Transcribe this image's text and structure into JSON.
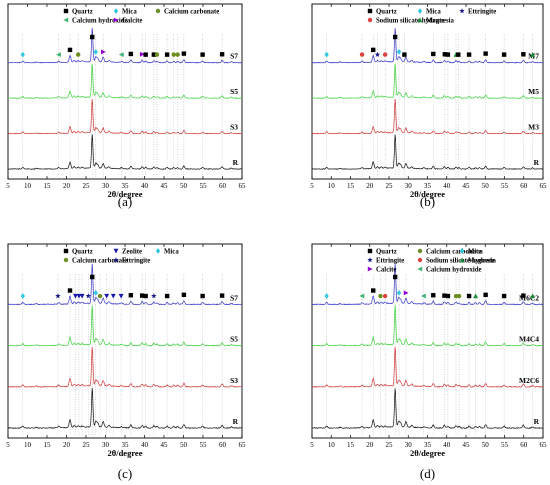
{
  "colors": {
    "R": "#111111",
    "S3": "#d23b3b",
    "S5": "#3fd23f",
    "S7": "#3838c8",
    "M3": "#d23b3b",
    "M5": "#3fd23f",
    "M7": "#3838c8",
    "M2C6": "#d23b3b",
    "M4C4": "#3fd23f",
    "M6C2": "#3838c8",
    "quartz": "#000000",
    "mica": "#33c8e0",
    "calcium_carbonate": "#6b8e23",
    "calcium_hydroxide": "#3cb371",
    "calcite": "#9400d3",
    "sodium_silicate_hydrate": "#e04040",
    "ettringite": "#1a1a8c",
    "magnesia": "#1a8c3a",
    "zeolite": "#1a1aa8"
  },
  "chart_data": [
    {
      "panel": "(a)",
      "type": "line",
      "xlabel": "2θ/degree",
      "xlim": [
        5,
        65
      ],
      "xticks": [
        5,
        10,
        15,
        20,
        25,
        30,
        35,
        40,
        45,
        50,
        55,
        60,
        65
      ],
      "series": [
        {
          "name": "R",
          "offset": 0
        },
        {
          "name": "S3",
          "offset": 1
        },
        {
          "name": "S5",
          "offset": 2
        },
        {
          "name": "S7",
          "offset": 3
        }
      ],
      "legend": [
        {
          "label": "Quartz",
          "marker": "square",
          "color": "quartz"
        },
        {
          "label": "Mica",
          "marker": "diamond",
          "color": "mica"
        },
        {
          "label": "Calcium carbonate",
          "marker": "circle",
          "color": "calcium_carbonate"
        },
        {
          "label": "Calcium hydroxide",
          "marker": "tri-left",
          "color": "calcium_hydroxide"
        },
        {
          "label": "Calcite",
          "marker": "tri-right",
          "color": "calcite"
        }
      ],
      "peak_markers": [
        {
          "x": 8.8,
          "marker": "diamond",
          "color": "mica"
        },
        {
          "x": 18.0,
          "marker": "tri-left",
          "color": "calcium_hydroxide"
        },
        {
          "x": 20.9,
          "marker": "square",
          "color": "quartz"
        },
        {
          "x": 23.0,
          "marker": "circle",
          "color": "calcium_carbonate"
        },
        {
          "x": 26.6,
          "marker": "square",
          "color": "quartz"
        },
        {
          "x": 27.5,
          "marker": "diamond",
          "color": "mica"
        },
        {
          "x": 29.4,
          "marker": "tri-right",
          "color": "calcite"
        },
        {
          "x": 34.1,
          "marker": "tri-left",
          "color": "calcium_hydroxide"
        },
        {
          "x": 36.5,
          "marker": "square",
          "color": "quartz"
        },
        {
          "x": 39.4,
          "marker": "tri-right",
          "color": "calcite"
        },
        {
          "x": 40.3,
          "marker": "square",
          "color": "quartz"
        },
        {
          "x": 42.4,
          "marker": "square",
          "color": "quartz"
        },
        {
          "x": 43.2,
          "marker": "circle",
          "color": "calcium_carbonate"
        },
        {
          "x": 45.8,
          "marker": "square",
          "color": "quartz"
        },
        {
          "x": 47.5,
          "marker": "circle",
          "color": "calcium_carbonate"
        },
        {
          "x": 48.5,
          "marker": "circle",
          "color": "calcium_carbonate"
        },
        {
          "x": 50.1,
          "marker": "square",
          "color": "quartz"
        },
        {
          "x": 54.9,
          "marker": "square",
          "color": "quartz"
        },
        {
          "x": 59.9,
          "marker": "square",
          "color": "quartz"
        }
      ]
    },
    {
      "panel": "(b)",
      "type": "line",
      "xlabel": "2θ/degree",
      "xlim": [
        5,
        65
      ],
      "xticks": [
        5,
        10,
        15,
        20,
        25,
        30,
        35,
        40,
        45,
        50,
        55,
        60,
        65
      ],
      "series": [
        {
          "name": "R",
          "offset": 0
        },
        {
          "name": "M3",
          "offset": 1
        },
        {
          "name": "M5",
          "offset": 2
        },
        {
          "name": "M7",
          "offset": 3
        }
      ],
      "legend": [
        {
          "label": "Quartz",
          "marker": "square",
          "color": "quartz"
        },
        {
          "label": "Mica",
          "marker": "diamond",
          "color": "mica"
        },
        {
          "label": "Ettringite",
          "marker": "star",
          "color": "ettringite"
        },
        {
          "label": "Sodium silicate hydrate",
          "marker": "circle",
          "color": "sodium_silicate_hydrate"
        },
        {
          "label": "Magnesia",
          "marker": "triangle",
          "color": "magnesia"
        }
      ],
      "peak_markers": [
        {
          "x": 8.8,
          "marker": "diamond",
          "color": "mica"
        },
        {
          "x": 18.0,
          "marker": "circle",
          "color": "sodium_silicate_hydrate"
        },
        {
          "x": 20.9,
          "marker": "square",
          "color": "quartz"
        },
        {
          "x": 22.0,
          "marker": "star",
          "color": "ettringite"
        },
        {
          "x": 24.0,
          "marker": "circle",
          "color": "sodium_silicate_hydrate"
        },
        {
          "x": 26.6,
          "marker": "square",
          "color": "quartz"
        },
        {
          "x": 27.6,
          "marker": "diamond",
          "color": "mica"
        },
        {
          "x": 29.0,
          "marker": "square",
          "color": "quartz"
        },
        {
          "x": 36.5,
          "marker": "square",
          "color": "quartz"
        },
        {
          "x": 39.5,
          "marker": "square",
          "color": "quartz"
        },
        {
          "x": 40.3,
          "marker": "square",
          "color": "quartz"
        },
        {
          "x": 42.4,
          "marker": "triangle",
          "color": "magnesia"
        },
        {
          "x": 43.0,
          "marker": "square",
          "color": "quartz"
        },
        {
          "x": 45.8,
          "marker": "square",
          "color": "quartz"
        },
        {
          "x": 50.1,
          "marker": "square",
          "color": "quartz"
        },
        {
          "x": 54.9,
          "marker": "square",
          "color": "quartz"
        },
        {
          "x": 59.9,
          "marker": "square",
          "color": "quartz"
        },
        {
          "x": 62.3,
          "marker": "triangle",
          "color": "magnesia"
        }
      ]
    },
    {
      "panel": "(c)",
      "type": "line",
      "xlabel": "2θ/degree",
      "xlim": [
        5,
        65
      ],
      "xticks": [
        5,
        10,
        15,
        20,
        25,
        30,
        35,
        40,
        45,
        50,
        55,
        60,
        65
      ],
      "series": [
        {
          "name": "R",
          "offset": 0
        },
        {
          "name": "S3",
          "offset": 1
        },
        {
          "name": "S5",
          "offset": 2
        },
        {
          "name": "S7",
          "offset": 3
        }
      ],
      "legend": [
        {
          "label": "Quartz",
          "marker": "square",
          "color": "quartz"
        },
        {
          "label": "Zeolite",
          "marker": "tri-down",
          "color": "zeolite"
        },
        {
          "label": "Mica",
          "marker": "diamond",
          "color": "mica"
        },
        {
          "label": "Calcium carbonate",
          "marker": "circle",
          "color": "calcium_carbonate"
        },
        {
          "label": "Ettringite",
          "marker": "star",
          "color": "ettringite"
        }
      ],
      "peak_markers": [
        {
          "x": 8.8,
          "marker": "diamond",
          "color": "mica"
        },
        {
          "x": 17.8,
          "marker": "star",
          "color": "ettringite"
        },
        {
          "x": 20.9,
          "marker": "square",
          "color": "quartz"
        },
        {
          "x": 22.3,
          "marker": "tri-down",
          "color": "zeolite"
        },
        {
          "x": 23.2,
          "marker": "tri-down",
          "color": "zeolite"
        },
        {
          "x": 24.0,
          "marker": "tri-down",
          "color": "zeolite"
        },
        {
          "x": 25.6,
          "marker": "star",
          "color": "ettringite"
        },
        {
          "x": 26.6,
          "marker": "square",
          "color": "quartz"
        },
        {
          "x": 27.5,
          "marker": "diamond",
          "color": "mica"
        },
        {
          "x": 28.6,
          "marker": "circle",
          "color": "calcium_carbonate"
        },
        {
          "x": 30.3,
          "marker": "tri-down",
          "color": "zeolite"
        },
        {
          "x": 32.0,
          "marker": "tri-down",
          "color": "zeolite"
        },
        {
          "x": 34.0,
          "marker": "tri-down",
          "color": "zeolite"
        },
        {
          "x": 36.5,
          "marker": "square",
          "color": "quartz"
        },
        {
          "x": 39.4,
          "marker": "square",
          "color": "quartz"
        },
        {
          "x": 40.3,
          "marker": "square",
          "color": "quartz"
        },
        {
          "x": 42.4,
          "marker": "star",
          "color": "ettringite"
        },
        {
          "x": 45.8,
          "marker": "square",
          "color": "quartz"
        },
        {
          "x": 50.1,
          "marker": "square",
          "color": "quartz"
        },
        {
          "x": 54.9,
          "marker": "square",
          "color": "quartz"
        },
        {
          "x": 59.9,
          "marker": "square",
          "color": "quartz"
        }
      ]
    },
    {
      "panel": "(d)",
      "type": "line",
      "xlabel": "2θ/degree",
      "xlim": [
        5,
        65
      ],
      "xticks": [
        5,
        10,
        15,
        20,
        25,
        30,
        35,
        40,
        45,
        50,
        55,
        60,
        65
      ],
      "series": [
        {
          "name": "R",
          "offset": 0
        },
        {
          "name": "M2C6",
          "offset": 1
        },
        {
          "name": "M4C4",
          "offset": 2
        },
        {
          "name": "M6C2",
          "offset": 3
        }
      ],
      "legend": [
        {
          "label": "Quartz",
          "marker": "square",
          "color": "quartz"
        },
        {
          "label": "Calcium carbonate",
          "marker": "circle",
          "color": "calcium_carbonate"
        },
        {
          "label": "Mica",
          "marker": "diamond",
          "color": "mica"
        },
        {
          "label": "Ettringite",
          "marker": "star",
          "color": "ettringite"
        },
        {
          "label": "Sodium silicate hydrate",
          "marker": "circle",
          "color": "sodium_silicate_hydrate"
        },
        {
          "label": "Magnesia",
          "marker": "triangle",
          "color": "magnesia"
        },
        {
          "label": "Calcite",
          "marker": "tri-right",
          "color": "calcite"
        },
        {
          "label": "Calcium hydroxide",
          "marker": "tri-left",
          "color": "calcium_hydroxide"
        }
      ],
      "peak_markers": [
        {
          "x": 8.8,
          "marker": "diamond",
          "color": "mica"
        },
        {
          "x": 18.0,
          "marker": "tri-left",
          "color": "calcium_hydroxide"
        },
        {
          "x": 20.9,
          "marker": "square",
          "color": "quartz"
        },
        {
          "x": 22.8,
          "marker": "circle",
          "color": "calcium_carbonate"
        },
        {
          "x": 24.0,
          "marker": "circle",
          "color": "sodium_silicate_hydrate"
        },
        {
          "x": 26.6,
          "marker": "square",
          "color": "quartz"
        },
        {
          "x": 27.6,
          "marker": "diamond",
          "color": "mica"
        },
        {
          "x": 29.4,
          "marker": "tri-right",
          "color": "calcite"
        },
        {
          "x": 34.0,
          "marker": "tri-left",
          "color": "calcium_hydroxide"
        },
        {
          "x": 36.5,
          "marker": "square",
          "color": "quartz"
        },
        {
          "x": 39.4,
          "marker": "square",
          "color": "quartz"
        },
        {
          "x": 40.3,
          "marker": "square",
          "color": "quartz"
        },
        {
          "x": 42.4,
          "marker": "circle",
          "color": "calcium_carbonate"
        },
        {
          "x": 43.2,
          "marker": "circle",
          "color": "calcium_carbonate"
        },
        {
          "x": 45.8,
          "marker": "square",
          "color": "quartz"
        },
        {
          "x": 47.5,
          "marker": "triangle",
          "color": "magnesia"
        },
        {
          "x": 50.1,
          "marker": "square",
          "color": "quartz"
        },
        {
          "x": 54.9,
          "marker": "square",
          "color": "quartz"
        },
        {
          "x": 59.9,
          "marker": "square",
          "color": "quartz"
        },
        {
          "x": 62.3,
          "marker": "triangle",
          "color": "magnesia"
        }
      ]
    }
  ]
}
